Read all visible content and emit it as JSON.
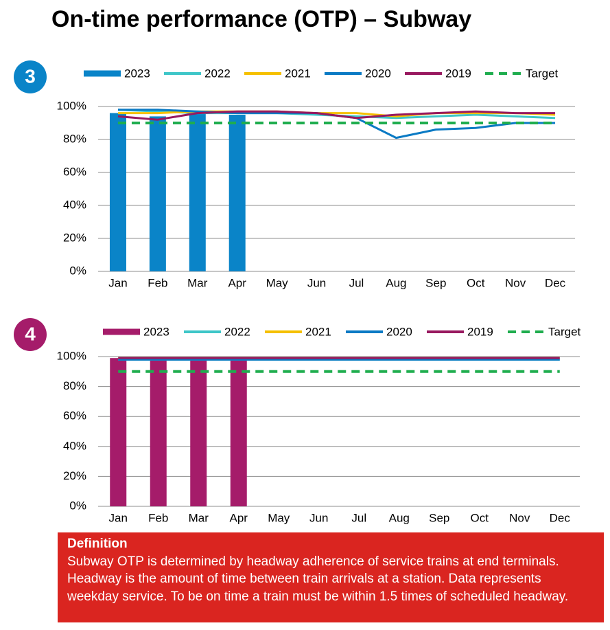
{
  "title": "On-time performance (OTP) – Subway",
  "chart_data": [
    {
      "type": "bar_line",
      "badge": "3",
      "badge_color": "#0a84c8",
      "categories": [
        "Jan",
        "Feb",
        "Mar",
        "Apr",
        "May",
        "Jun",
        "Jul",
        "Aug",
        "Sep",
        "Oct",
        "Nov",
        "Dec"
      ],
      "ylim": [
        0,
        100
      ],
      "yticks": [
        {
          "value": 0,
          "label": "0%"
        },
        {
          "value": 20,
          "label": "20%"
        },
        {
          "value": 40,
          "label": "40%"
        },
        {
          "value": 60,
          "label": "60%"
        },
        {
          "value": 80,
          "label": "80%"
        },
        {
          "value": 100,
          "label": "100%"
        }
      ],
      "grid": true,
      "series": [
        {
          "name": "2023",
          "type": "bar",
          "color": "#0a84c8",
          "values": [
            96,
            94,
            97,
            95,
            null,
            null,
            null,
            null,
            null,
            null,
            null,
            null
          ]
        },
        {
          "name": "2022",
          "type": "line",
          "color": "#3ec6c8",
          "values": [
            98,
            97,
            96,
            96,
            96,
            95,
            94,
            93,
            94,
            95,
            94,
            93
          ]
        },
        {
          "name": "2021",
          "type": "line",
          "color": "#f5c000",
          "values": [
            96,
            96,
            97,
            97,
            97,
            96,
            96,
            94,
            96,
            96,
            96,
            95
          ]
        },
        {
          "name": "2020",
          "type": "line",
          "color": "#0a7ac4",
          "values": [
            98,
            98,
            97,
            96,
            96,
            96,
            93,
            81,
            86,
            87,
            90,
            90
          ]
        },
        {
          "name": "2019",
          "type": "line",
          "color": "#98195f",
          "values": [
            94,
            92,
            96,
            97,
            97,
            96,
            93,
            95,
            96,
            97,
            96,
            96
          ]
        },
        {
          "name": "Target",
          "type": "dashed",
          "color": "#1fad4e",
          "values": [
            90,
            90,
            90,
            90,
            90,
            90,
            90,
            90,
            90,
            90,
            90,
            90
          ]
        }
      ]
    },
    {
      "type": "bar_line",
      "badge": "4",
      "badge_color": "#a51c6a",
      "categories": [
        "Jan",
        "Feb",
        "Mar",
        "Apr",
        "May",
        "Jun",
        "Jul",
        "Aug",
        "Sep",
        "Oct",
        "Nov",
        "Dec"
      ],
      "ylim": [
        0,
        100
      ],
      "yticks": [
        {
          "value": 0,
          "label": "0%"
        },
        {
          "value": 20,
          "label": "20%"
        },
        {
          "value": 40,
          "label": "40%"
        },
        {
          "value": 60,
          "label": "60%"
        },
        {
          "value": 80,
          "label": "80%"
        },
        {
          "value": 100,
          "label": "100%"
        }
      ],
      "grid": true,
      "series": [
        {
          "name": "2023",
          "type": "bar",
          "color": "#a51c6a",
          "values": [
            99,
            99,
            99,
            99,
            null,
            null,
            null,
            null,
            null,
            null,
            null,
            null
          ]
        },
        {
          "name": "2022",
          "type": "line",
          "color": "#3ec6c8",
          "values": [
            98,
            98,
            98,
            98,
            98,
            98,
            98,
            98,
            98,
            98,
            98,
            98
          ]
        },
        {
          "name": "2021",
          "type": "line",
          "color": "#f5c000",
          "values": [
            99,
            99,
            99,
            99,
            99,
            99,
            99,
            99,
            99,
            99,
            99,
            99
          ]
        },
        {
          "name": "2020",
          "type": "line",
          "color": "#0a7ac4",
          "values": [
            98,
            98,
            98,
            98,
            98,
            98,
            98,
            98,
            98,
            98,
            98,
            98
          ]
        },
        {
          "name": "2019",
          "type": "line",
          "color": "#98195f",
          "values": [
            99,
            99,
            99,
            99,
            99,
            99,
            99,
            99,
            99,
            99,
            99,
            99
          ]
        },
        {
          "name": "Target",
          "type": "dashed",
          "color": "#1fad4e",
          "values": [
            90,
            90,
            90,
            90,
            90,
            90,
            90,
            90,
            90,
            90,
            90,
            90
          ]
        }
      ]
    }
  ],
  "definition": {
    "heading": "Definition",
    "text": "Subway OTP is determined by headway adherence of service trains at end terminals. Headway is the amount of time between train arrivals at a station. Data represents weekday service. To be on time a train must be within 1.5 times of scheduled headway."
  }
}
